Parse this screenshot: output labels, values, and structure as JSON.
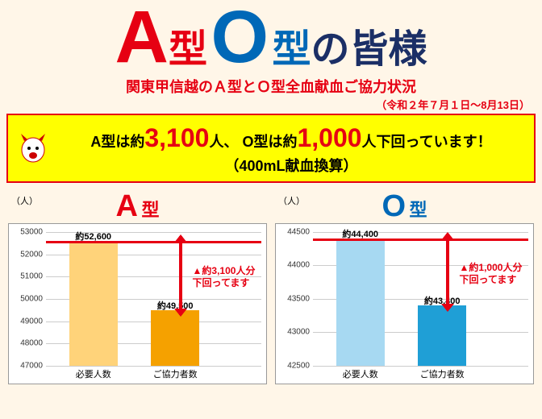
{
  "colors": {
    "page_bg": "#fff6e8",
    "red": "#e60012",
    "blue": "#0068b7",
    "dark_navy": "#1b2f66",
    "black": "#000000",
    "alert_bg": "#ffff00",
    "alert_border": "#e60012",
    "need_line": "#e60012",
    "chart_bg": "#ffffff",
    "grid": "#cccccc"
  },
  "headline": {
    "A": "A",
    "gata1": "型",
    "O": "O",
    "gata2": "型",
    "suffix": "の皆様"
  },
  "subtitle": "関東甲信越のＡ型とＯ型全血献血ご協力状況",
  "date_note": "（令和２年７月１日～8月13日）",
  "alert": {
    "pre_a": "A型は約",
    "num_a": "3,100",
    "mid": "人、 O型は約",
    "num_o": "1,000",
    "post": "人下回っています！",
    "line2": "（400mL献血換算）"
  },
  "axis_unit": "（人）",
  "x_labels": {
    "need": "必要人数",
    "got": "ご協力者数"
  },
  "chart_a": {
    "title_big": "A",
    "title_sm": "型",
    "title_color": "#e60012",
    "ymin": 47000,
    "ymax": 53000,
    "ytick_step": 1000,
    "need": {
      "value": 52600,
      "label": "約52,600",
      "color": "#ffd37a"
    },
    "got": {
      "value": 49500,
      "label": "約49,500",
      "color": "#f5a100"
    },
    "shortfall_note_l1": "▲約3,100人分",
    "shortfall_note_l2": "下回ってます"
  },
  "chart_o": {
    "title_big": "O",
    "title_sm": "型",
    "title_color": "#0068b7",
    "ymin": 42500,
    "ymax": 44500,
    "ytick_step": 500,
    "need": {
      "value": 44400,
      "label": "約44,400",
      "color": "#a7d9f2"
    },
    "got": {
      "value": 43400,
      "label": "約43,400",
      "color": "#1f9fd6"
    },
    "shortfall_note_l1": "▲約1,000人分",
    "shortfall_note_l2": "下回ってます"
  }
}
